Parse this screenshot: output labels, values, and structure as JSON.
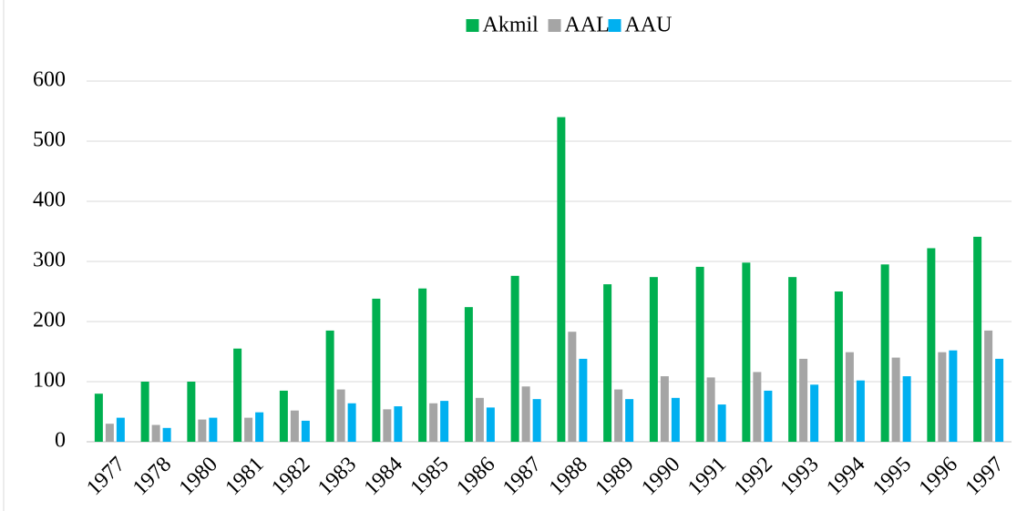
{
  "chart_data": {
    "type": "bar",
    "categories": [
      "1977",
      "1978",
      "1980",
      "1981",
      "1982",
      "1983",
      "1984",
      "1985",
      "1986",
      "1987",
      "1988",
      "1989",
      "1990",
      "1991",
      "1992",
      "1993",
      "1994",
      "1995",
      "1996",
      "1997"
    ],
    "series": [
      {
        "name": "Akmil",
        "color": "#00b050",
        "values": [
          80,
          100,
          100,
          155,
          85,
          185,
          238,
          255,
          224,
          276,
          540,
          262,
          274,
          291,
          298,
          274,
          250,
          295,
          322,
          341
        ]
      },
      {
        "name": "AAL",
        "color": "#a5a5a5",
        "values": [
          30,
          28,
          37,
          40,
          52,
          87,
          54,
          64,
          73,
          92,
          183,
          87,
          109,
          107,
          116,
          138,
          149,
          140,
          149,
          185
        ]
      },
      {
        "name": "AAU",
        "color": "#00b0f0",
        "values": [
          40,
          23,
          40,
          49,
          35,
          64,
          59,
          68,
          57,
          71,
          138,
          71,
          73,
          62,
          85,
          95,
          102,
          109,
          152,
          138
        ]
      }
    ],
    "ylim": [
      0,
      600
    ],
    "yticks": [
      0,
      100,
      200,
      300,
      400,
      500,
      600
    ],
    "grid": true,
    "legend": "top"
  }
}
